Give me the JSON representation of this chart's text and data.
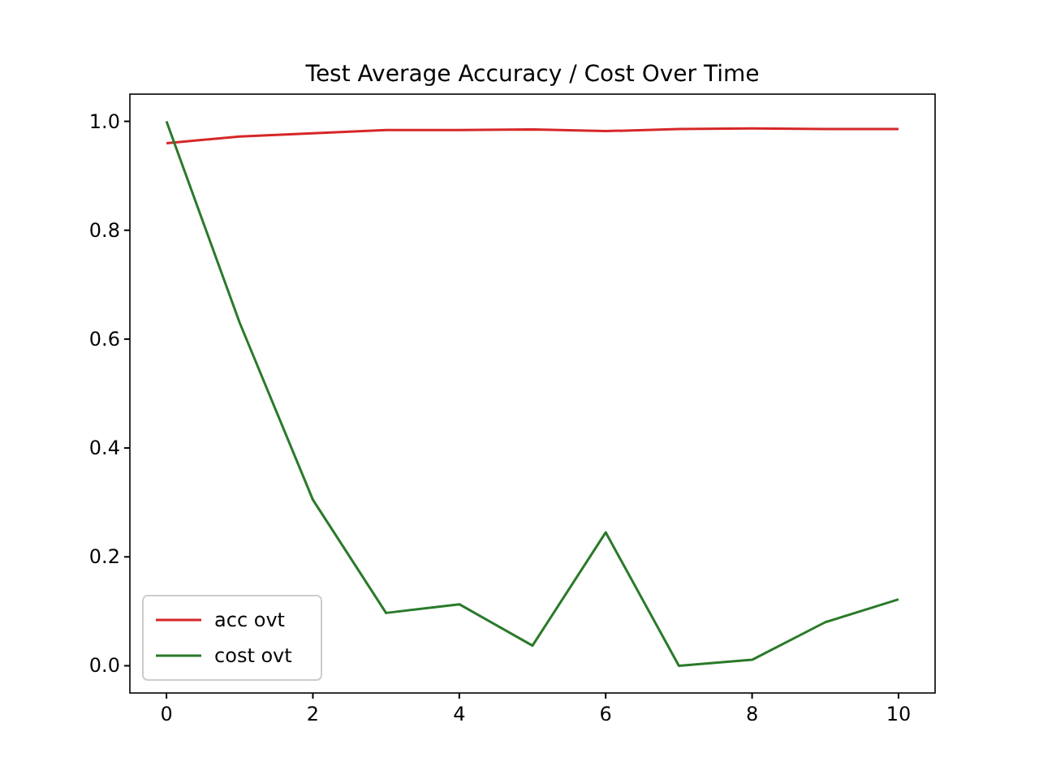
{
  "chart_data": {
    "type": "line",
    "title": "Test Average Accuracy / Cost Over Time",
    "x": [
      0,
      1,
      2,
      3,
      4,
      5,
      6,
      7,
      8,
      9,
      10
    ],
    "series": [
      {
        "name": "acc ovt",
        "color": "#d62728",
        "values": [
          0.96,
          0.972,
          0.978,
          0.984,
          0.984,
          0.985,
          0.982,
          0.986,
          0.987,
          0.986,
          0.986
        ]
      },
      {
        "name": "cost ovt",
        "color": "#2a7a2a",
        "values": [
          1.0,
          0.63,
          0.305,
          0.097,
          0.113,
          0.037,
          0.245,
          0.0,
          0.011,
          0.08,
          0.122
        ]
      }
    ],
    "xlim": [
      -0.5,
      10.5
    ],
    "xticks": [
      0,
      2,
      4,
      6,
      8,
      10
    ],
    "ylim": [
      -0.05,
      1.05
    ],
    "yticks": [
      {
        "value": 0,
        "label": "0.0"
      },
      {
        "value": 0.2,
        "label": "0.2"
      },
      {
        "value": 0.4,
        "label": "0.4"
      },
      {
        "value": 0.6,
        "label": "0.6"
      },
      {
        "value": 0.8,
        "label": "0.8"
      },
      {
        "value": 1,
        "label": "1.0"
      }
    ],
    "legend": "bottom left",
    "grid": false
  }
}
